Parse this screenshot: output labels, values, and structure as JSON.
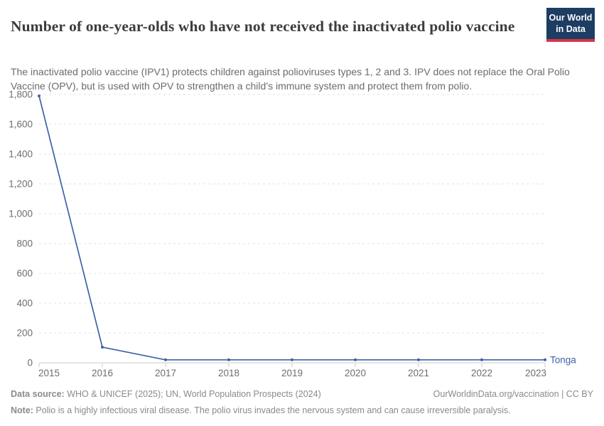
{
  "header": {
    "title": "Number of one-year-olds who have not received the inactivated polio vaccine",
    "subtitle": "The inactivated polio vaccine (IPV1) protects children against polioviruses types 1, 2 and 3. IPV does not replace the Oral Polio Vaccine (OPV), but is used with OPV to strengthen a child’s immune system and protect them from polio.",
    "logo": {
      "line1": "Our World",
      "line2": "in Data",
      "bg_color": "#1d3d63",
      "accent_color": "#d9344a"
    }
  },
  "chart_data": {
    "type": "line",
    "title": "Number of one-year-olds who have not received the inactivated polio vaccine",
    "x": [
      2015,
      2016,
      2017,
      2018,
      2019,
      2020,
      2021,
      2022,
      2023
    ],
    "xtick_labels": [
      "2015",
      "2016",
      "2017",
      "2018",
      "2019",
      "2020",
      "2021",
      "2022",
      "2023"
    ],
    "series": [
      {
        "name": "Tonga",
        "color": "#3d62a6",
        "values": [
          1790,
          105,
          20,
          20,
          20,
          20,
          20,
          20,
          20
        ]
      }
    ],
    "ylim": [
      0,
      1800
    ],
    "yticks": [
      {
        "value": 0,
        "label": "0"
      },
      {
        "value": 200,
        "label": "200"
      },
      {
        "value": 400,
        "label": "400"
      },
      {
        "value": 600,
        "label": "600"
      },
      {
        "value": 800,
        "label": "800"
      },
      {
        "value": 1000,
        "label": "1,000"
      },
      {
        "value": 1200,
        "label": "1,200"
      },
      {
        "value": 1400,
        "label": "1,400"
      },
      {
        "value": 1600,
        "label": "1,600"
      },
      {
        "value": 1800,
        "label": "1,800"
      }
    ],
    "grid": "horizontal-dashed",
    "grid_color": "#e2e2e2",
    "axis_color": "#c8c8c8",
    "tick_color": "#6d6d6d",
    "legend_position": "end-of-line"
  },
  "footer": {
    "data_source_label": "Data source:",
    "data_source_text": " WHO & UNICEF (2025); UN, World Population Prospects (2024)",
    "link_text": "OurWorldinData.org/vaccination | CC BY",
    "note_label": "Note:",
    "note_text": " Polio is a highly infectious viral disease. The polio virus invades the nervous system and can cause irreversible paralysis."
  }
}
